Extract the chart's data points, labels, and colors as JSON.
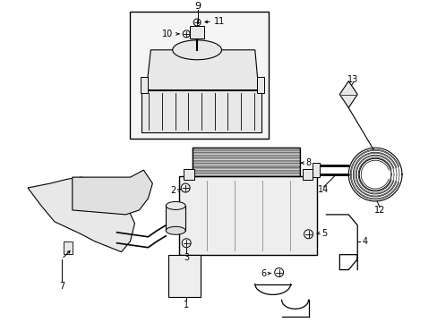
{
  "background_color": "#ffffff",
  "line_color": "#000000",
  "gray_fill": "#e8e8e8",
  "light_gray": "#f0f0f0",
  "figure_size": [
    4.89,
    3.6
  ],
  "dpi": 100
}
